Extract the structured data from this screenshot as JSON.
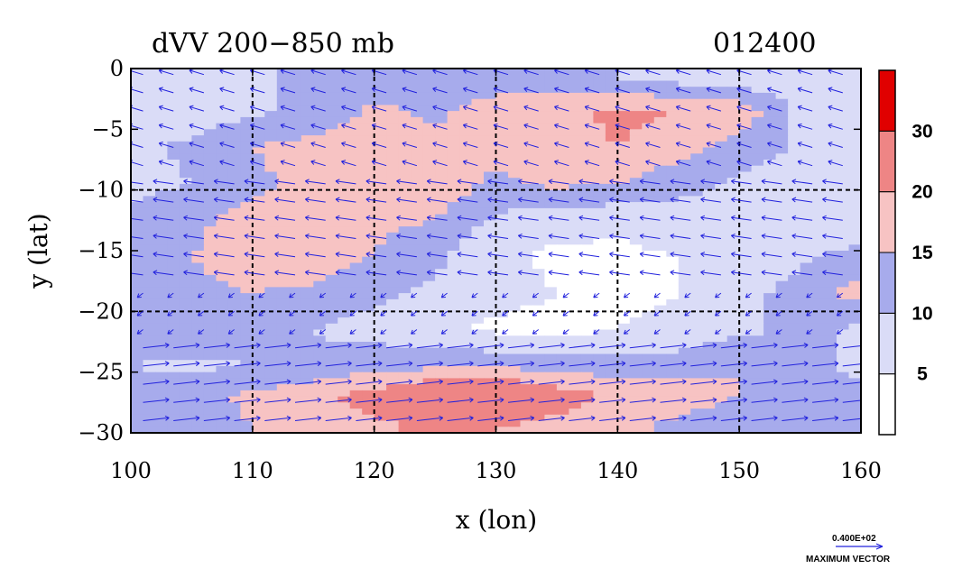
{
  "chart_data": {
    "type": "heatmap",
    "title": "dVV 200−850 mb",
    "time_label": "012400",
    "xlabel": "x (lon)",
    "ylabel": "y (lat)",
    "xlim": [
      100,
      160
    ],
    "ylim": [
      -30,
      0
    ],
    "x_ticks": [
      {
        "value": 100,
        "label": "100"
      },
      {
        "value": 110,
        "label": "110"
      },
      {
        "value": 120,
        "label": "120"
      },
      {
        "value": 130,
        "label": "130"
      },
      {
        "value": 140,
        "label": "140"
      },
      {
        "value": 150,
        "label": "150"
      },
      {
        "value": 160,
        "label": "160"
      }
    ],
    "y_ticks": [
      {
        "value": 0,
        "label": "0"
      },
      {
        "value": -5,
        "label": "−5"
      },
      {
        "value": -10,
        "label": "−10"
      },
      {
        "value": -15,
        "label": "−15"
      },
      {
        "value": -20,
        "label": "−20"
      },
      {
        "value": -25,
        "label": "−25"
      },
      {
        "value": -30,
        "label": "−30"
      }
    ],
    "dashed_grid_lon": [
      110,
      120,
      130,
      140,
      150
    ],
    "dashed_grid_lat": [
      -10,
      -20
    ],
    "colorbar": {
      "levels": [
        0,
        5,
        10,
        15,
        20,
        30,
        40
      ],
      "tick_labels": [
        {
          "value": 5,
          "label": "5"
        },
        {
          "value": 10,
          "label": "10"
        },
        {
          "value": 15,
          "label": "15"
        },
        {
          "value": 20,
          "label": "20"
        },
        {
          "value": 30,
          "label": "30"
        }
      ],
      "colors": [
        "#ffffff",
        "#dadcf7",
        "#a7abec",
        "#f7c3c3",
        "#ee8585",
        "#e00000"
      ]
    },
    "bands": [
      {
        "lat": -1.0,
        "lon": [
          100,
          105,
          110,
          115,
          120,
          125,
          130,
          135,
          140,
          145,
          150,
          155,
          160
        ],
        "values": [
          7,
          8,
          9,
          11,
          13,
          14,
          13,
          12,
          10,
          9,
          8,
          7,
          6
        ]
      },
      {
        "lat": -3.5,
        "lon": [
          100,
          105,
          110,
          115,
          120,
          125,
          130,
          135,
          140,
          145,
          150,
          155,
          160
        ],
        "values": [
          6,
          7,
          9,
          11,
          16,
          14,
          17,
          19,
          21,
          20,
          18,
          9,
          6
        ]
      },
      {
        "lat": -6.5,
        "lon": [
          100,
          105,
          110,
          115,
          120,
          125,
          130,
          135,
          140,
          145,
          150,
          155,
          160
        ],
        "values": [
          9,
          11,
          15,
          17,
          19,
          17,
          16,
          18,
          20,
          17,
          13,
          9,
          7
        ]
      },
      {
        "lat": -9.5,
        "lon": [
          100,
          105,
          110,
          115,
          120,
          125,
          130,
          135,
          140,
          145,
          150,
          155,
          160
        ],
        "values": [
          8,
          10,
          14,
          16,
          17,
          18,
          14,
          16,
          15,
          12,
          9,
          8,
          7
        ]
      },
      {
        "lat": -12.5,
        "lon": [
          100,
          105,
          110,
          115,
          120,
          125,
          130,
          135,
          140,
          145,
          150,
          155,
          160
        ],
        "values": [
          12,
          14,
          17,
          19,
          16,
          15,
          9,
          7,
          6,
          7,
          8,
          7,
          6
        ]
      },
      {
        "lat": -15.5,
        "lon": [
          100,
          105,
          110,
          115,
          120,
          125,
          130,
          135,
          140,
          145,
          150,
          155,
          160
        ],
        "values": [
          13,
          15,
          17,
          18,
          15,
          11,
          6,
          4,
          4,
          5,
          7,
          9,
          12
        ]
      },
      {
        "lat": -18.5,
        "lon": [
          100,
          105,
          110,
          115,
          120,
          125,
          130,
          135,
          140,
          145,
          150,
          155,
          160
        ],
        "values": [
          12,
          14,
          15,
          14,
          11,
          9,
          7,
          5,
          4,
          5,
          8,
          12,
          17
        ]
      },
      {
        "lat": -21.5,
        "lon": [
          100,
          105,
          110,
          115,
          120,
          125,
          130,
          135,
          140,
          145,
          150,
          155,
          160
        ],
        "values": [
          11,
          13,
          12,
          10,
          8,
          6,
          4,
          3,
          5,
          6,
          9,
          11,
          9
        ]
      },
      {
        "lat": -24.5,
        "lon": [
          100,
          105,
          110,
          115,
          120,
          125,
          130,
          135,
          140,
          145,
          150,
          155,
          160
        ],
        "values": [
          10,
          9,
          10,
          11,
          13,
          14,
          14,
          13,
          12,
          13,
          15,
          11,
          9
        ]
      },
      {
        "lat": -27.0,
        "lon": [
          100,
          105,
          110,
          115,
          120,
          125,
          130,
          135,
          140,
          145,
          150,
          155,
          160
        ],
        "values": [
          11,
          13,
          16,
          19,
          22,
          27,
          29,
          23,
          19,
          17,
          15,
          13,
          11
        ]
      },
      {
        "lat": -29.5,
        "lon": [
          100,
          105,
          110,
          115,
          120,
          125,
          130,
          135,
          140,
          145,
          150,
          155,
          160
        ],
        "values": [
          10,
          12,
          15,
          17,
          19,
          21,
          20,
          18,
          16,
          14,
          12,
          11,
          10
        ]
      }
    ],
    "wind_vectors": {
      "lon_spacing": 2.5,
      "lat_spacing": 1.5,
      "max_vector_label": "0.400E+02",
      "max_vector_caption": "MAXIMUM VECTOR",
      "color": "#2222dd",
      "zones": [
        {
          "lat_range": [
            0,
            -8
          ],
          "u": -10,
          "v": 3
        },
        {
          "lat_range": [
            -8,
            -18
          ],
          "u": -14,
          "v": 2
        },
        {
          "lat_range": [
            -18,
            -22
          ],
          "u": -4,
          "v": -3
        },
        {
          "lat_range": [
            -22,
            -30
          ],
          "u": 18,
          "v": 2
        }
      ]
    }
  }
}
